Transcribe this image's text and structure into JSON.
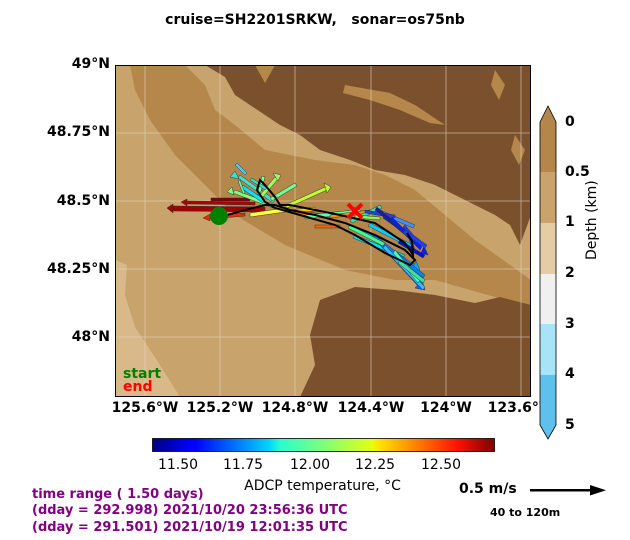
{
  "title": "cruise=SH2201SRKW,   sonar=os75nb",
  "map": {
    "lat_ticks": [
      "49°N",
      "48.75°N",
      "48.5°N",
      "48.25°N",
      "48°N"
    ],
    "lon_ticks": [
      "125.6°W",
      "125.2°W",
      "124.8°W",
      "124.4°W",
      "124°W",
      "123.6°W"
    ],
    "start_label": "start",
    "end_label": "end"
  },
  "depth_colorbar": {
    "label": "Depth (km)",
    "ticks": [
      "0",
      "0.5",
      "1",
      "2",
      "3",
      "4",
      "5"
    ],
    "colors": [
      "#b5864a",
      "#c9a36b",
      "#e4cca5",
      "#f0f0f0",
      "#a8e4f8",
      "#5dc1ec"
    ]
  },
  "temperature_colorbar": {
    "label": "ADCP temperature, °C",
    "ticks": [
      "11.50",
      "11.75",
      "12.00",
      "12.25",
      "12.50"
    ]
  },
  "time_info": {
    "range": "time range ( 1.50 days)",
    "end_line": "(dday = 292.998) 2021/10/20 23:56:36 UTC",
    "start_line": "(dday = 291.501) 2021/10/19 12:01:35 UTC"
  },
  "scale": {
    "label": "0.5 m/s",
    "depth_range": "40 to 120m"
  },
  "colors": {
    "land": "#7b512d",
    "shelf": "#c8a46c",
    "shallow": "#b5874b",
    "track": "#000000",
    "start_marker": "#008000",
    "end_marker": "#ff0000",
    "info_text": "#800080"
  }
}
